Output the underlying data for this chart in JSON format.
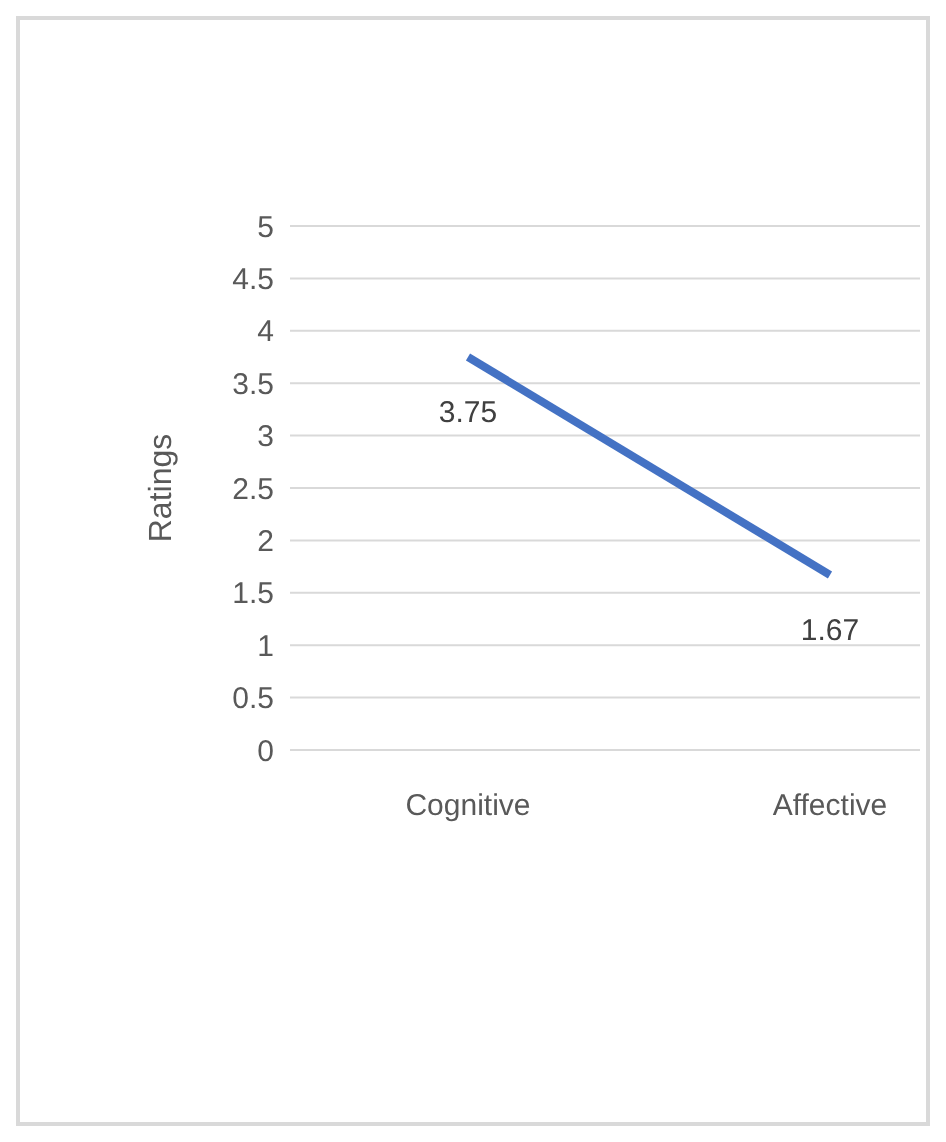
{
  "chart_data": {
    "type": "line",
    "ylabel": "Ratings",
    "categories": [
      "Cognitive",
      "Affective"
    ],
    "series": [
      {
        "color": "#4472c4",
        "values": [
          3.75,
          1.67
        ]
      }
    ],
    "ylim": [
      0,
      5
    ],
    "yticks": [
      0,
      0.5,
      1,
      1.5,
      2,
      2.5,
      3,
      3.5,
      4,
      4.5,
      5
    ],
    "grid": "y",
    "data_labels": true,
    "marker": "none",
    "line_style": "solid",
    "legend": false
  }
}
